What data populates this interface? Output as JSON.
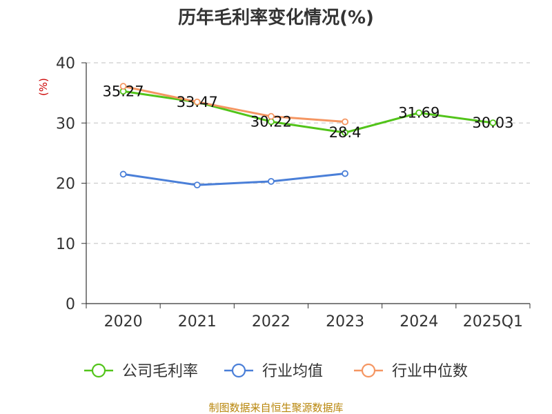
{
  "chart_data": {
    "type": "line",
    "title": "历年毛利率变化情况(%)",
    "ylabel": "(%)",
    "xlabel": "",
    "categories": [
      "2020",
      "2021",
      "2022",
      "2023",
      "2024",
      "2025Q1"
    ],
    "ylim": [
      0,
      40
    ],
    "yticks": [
      0,
      10,
      20,
      30,
      40
    ],
    "grid": true,
    "legend_position": "bottom",
    "series": [
      {
        "name": "公司毛利率",
        "color": "#52c41a",
        "values": [
          35.27,
          33.47,
          30.22,
          28.4,
          31.69,
          30.03
        ],
        "labels": [
          "35.27",
          "33.47",
          "30.22",
          "28.4",
          "31.69",
          "30.03"
        ]
      },
      {
        "name": "行业均值",
        "color": "#4a7fd8",
        "values": [
          21.5,
          19.7,
          20.3,
          21.6,
          null,
          null
        ]
      },
      {
        "name": "行业中位数",
        "color": "#f59662",
        "values": [
          36.1,
          33.5,
          31.1,
          30.2,
          null,
          null
        ]
      }
    ],
    "source": "制图数据来自恒生聚源数据库"
  }
}
